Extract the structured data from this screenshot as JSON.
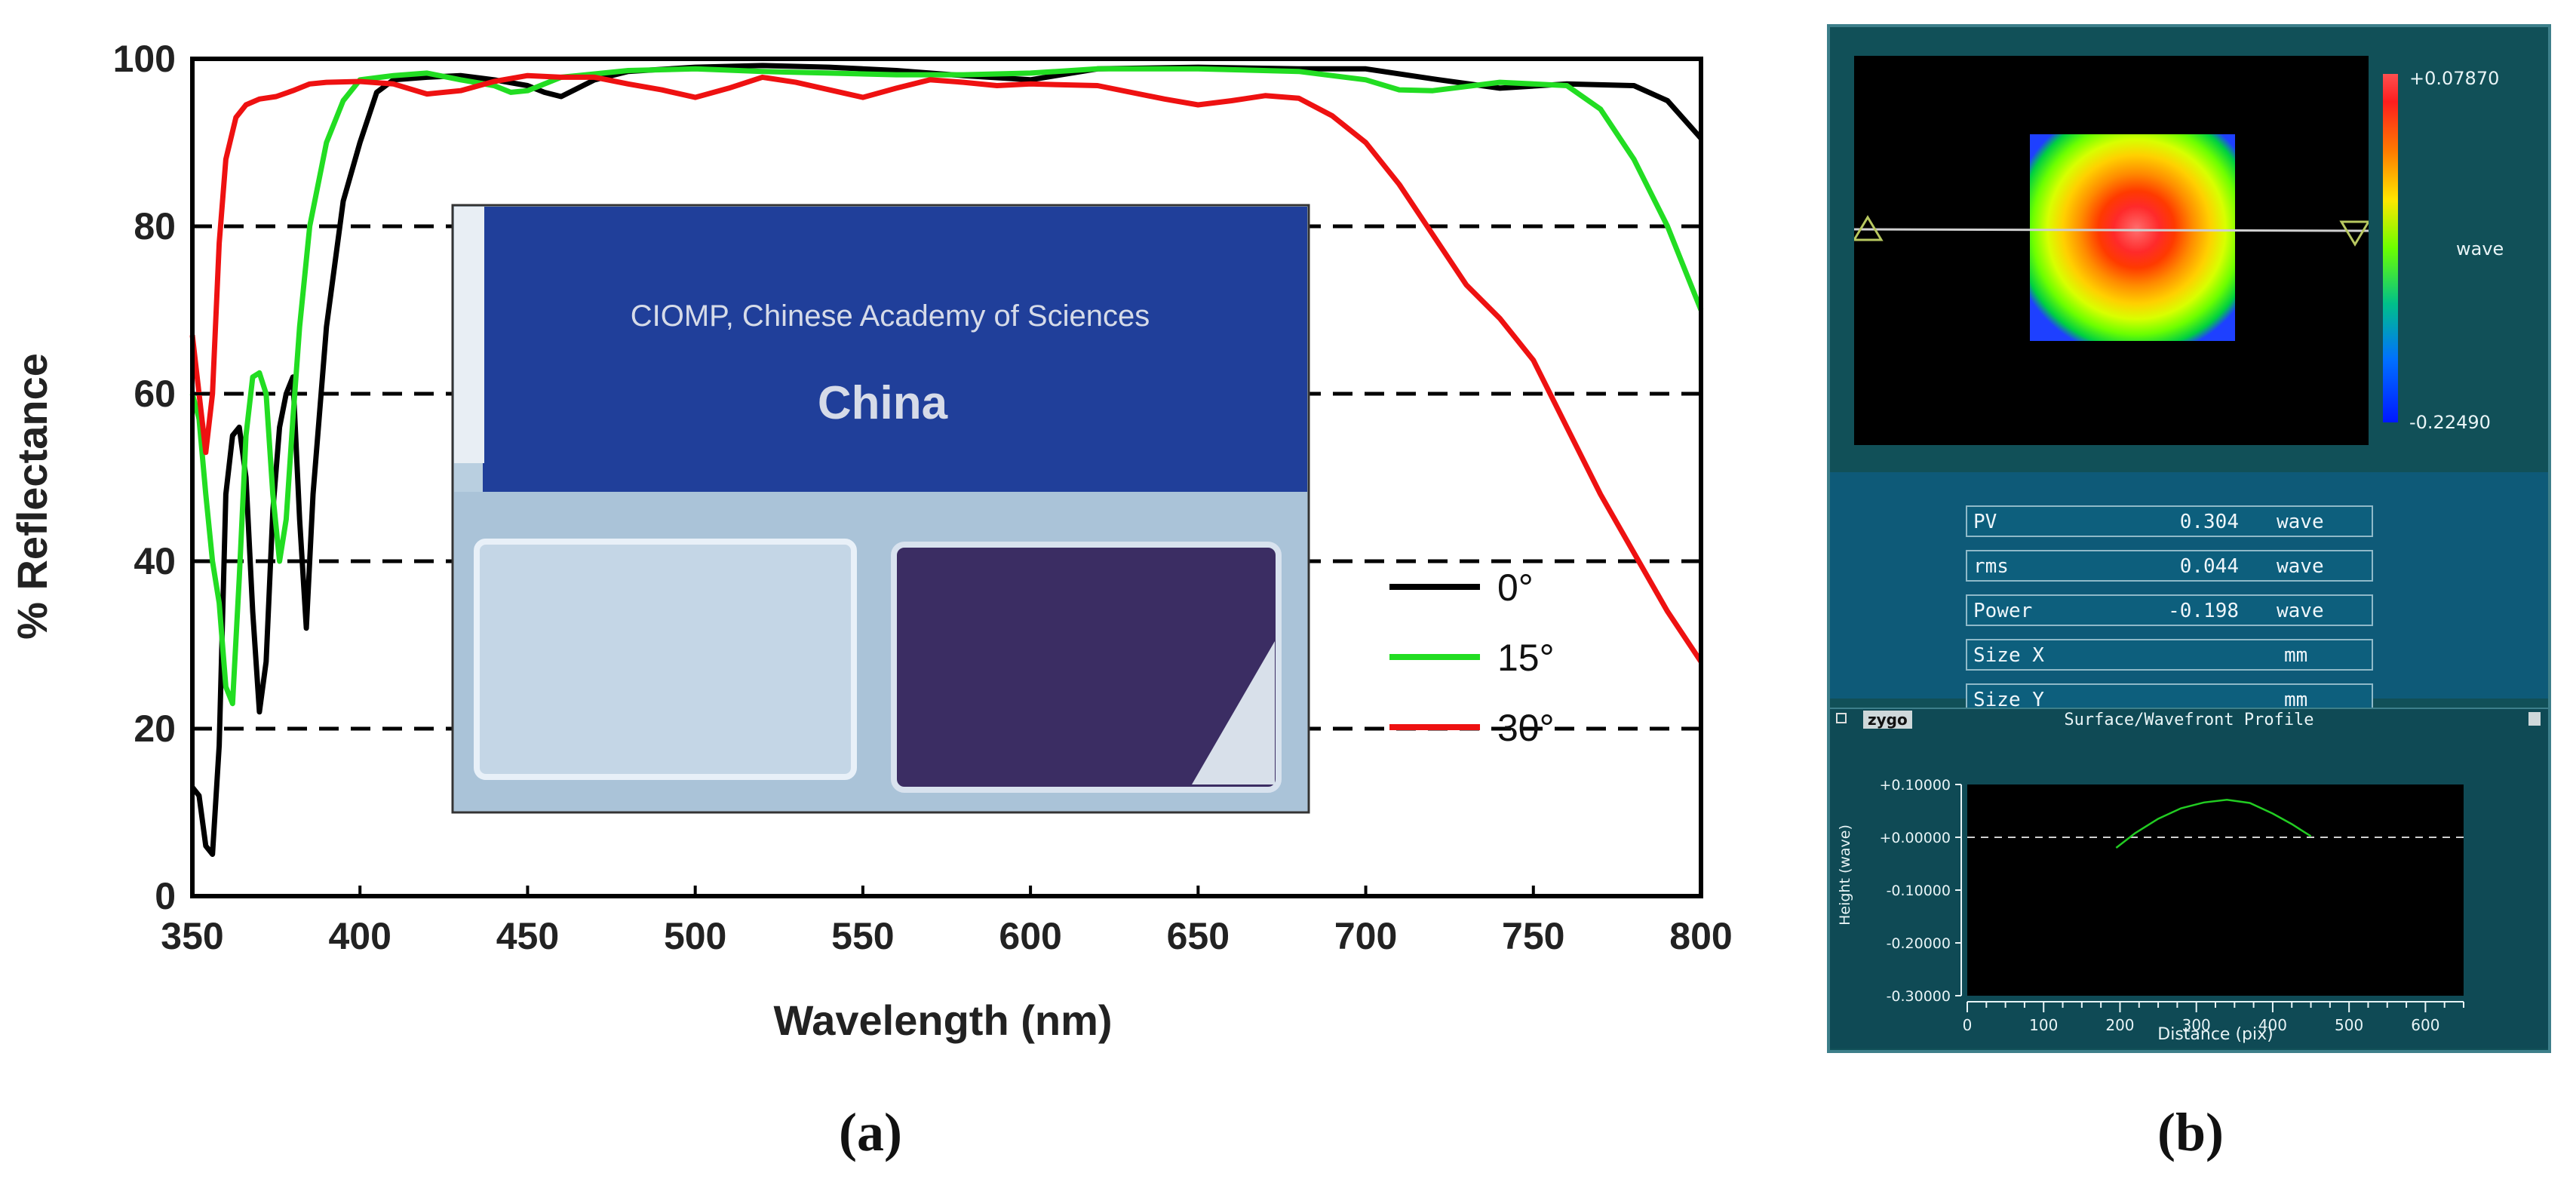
{
  "chart_data": [
    {
      "type": "line",
      "title": "",
      "xlabel": "Wavelength (nm)",
      "ylabel": "% Reflectance",
      "xlim": [
        350,
        800
      ],
      "ylim": [
        0,
        100
      ],
      "x_ticks": [
        350,
        400,
        450,
        500,
        550,
        600,
        650,
        700,
        750,
        800
      ],
      "y_ticks": [
        0,
        20,
        40,
        60,
        80,
        100
      ],
      "grid": "dashed horizontal at 20,40,60,80",
      "legend_position": "right",
      "series": [
        {
          "name": "0°",
          "color": "#000000",
          "points": [
            [
              350,
              13
            ],
            [
              352,
              12
            ],
            [
              354,
              6
            ],
            [
              356,
              5
            ],
            [
              358,
              18
            ],
            [
              360,
              48
            ],
            [
              362,
              55
            ],
            [
              364,
              56
            ],
            [
              366,
              50
            ],
            [
              368,
              34
            ],
            [
              370,
              22
            ],
            [
              372,
              28
            ],
            [
              374,
              46
            ],
            [
              376,
              56
            ],
            [
              378,
              60
            ],
            [
              380,
              62
            ],
            [
              382,
              45
            ],
            [
              384,
              32
            ],
            [
              386,
              48
            ],
            [
              390,
              68
            ],
            [
              395,
              83
            ],
            [
              400,
              90
            ],
            [
              405,
              96
            ],
            [
              410,
              97.5
            ],
            [
              420,
              97.8
            ],
            [
              430,
              98
            ],
            [
              440,
              97.5
            ],
            [
              450,
              96.8
            ],
            [
              455,
              96
            ],
            [
              460,
              95.5
            ],
            [
              470,
              97.5
            ],
            [
              480,
              98.5
            ],
            [
              500,
              99
            ],
            [
              520,
              99.2
            ],
            [
              540,
              99
            ],
            [
              560,
              98.6
            ],
            [
              580,
              98
            ],
            [
              600,
              97.5
            ],
            [
              620,
              98.8
            ],
            [
              650,
              99
            ],
            [
              680,
              98.8
            ],
            [
              700,
              98.8
            ],
            [
              720,
              97.6
            ],
            [
              740,
              96.5
            ],
            [
              760,
              97
            ],
            [
              780,
              96.8
            ],
            [
              790,
              95
            ],
            [
              800,
              90.5
            ]
          ]
        },
        {
          "name": "15°",
          "color": "#22dd22",
          "points": [
            [
              350,
              60
            ],
            [
              352,
              57
            ],
            [
              354,
              48
            ],
            [
              356,
              40
            ],
            [
              358,
              35
            ],
            [
              360,
              25
            ],
            [
              362,
              23
            ],
            [
              364,
              38
            ],
            [
              366,
              55
            ],
            [
              368,
              62
            ],
            [
              370,
              62.5
            ],
            [
              372,
              60
            ],
            [
              374,
              48
            ],
            [
              376,
              40
            ],
            [
              378,
              45
            ],
            [
              380,
              57
            ],
            [
              382,
              68
            ],
            [
              385,
              80
            ],
            [
              390,
              90
            ],
            [
              395,
              95
            ],
            [
              400,
              97.5
            ],
            [
              410,
              98
            ],
            [
              420,
              98.3
            ],
            [
              430,
              97.5
            ],
            [
              440,
              96.8
            ],
            [
              445,
              96
            ],
            [
              450,
              96.2
            ],
            [
              460,
              97.8
            ],
            [
              480,
              98.6
            ],
            [
              500,
              98.8
            ],
            [
              520,
              98.5
            ],
            [
              540,
              98.3
            ],
            [
              560,
              98.1
            ],
            [
              580,
              98.1
            ],
            [
              600,
              98.3
            ],
            [
              620,
              98.8
            ],
            [
              650,
              98.8
            ],
            [
              680,
              98.5
            ],
            [
              700,
              97.5
            ],
            [
              710,
              96.3
            ],
            [
              720,
              96.2
            ],
            [
              740,
              97.2
            ],
            [
              760,
              96.8
            ],
            [
              770,
              94
            ],
            [
              780,
              88
            ],
            [
              790,
              80
            ],
            [
              800,
              70
            ]
          ]
        },
        {
          "name": "30°",
          "color": "#ee1111",
          "points": [
            [
              350,
              67
            ],
            [
              352,
              60
            ],
            [
              354,
              53
            ],
            [
              356,
              60
            ],
            [
              358,
              78
            ],
            [
              360,
              88
            ],
            [
              363,
              93
            ],
            [
              366,
              94.5
            ],
            [
              370,
              95.2
            ],
            [
              375,
              95.5
            ],
            [
              380,
              96.2
            ],
            [
              385,
              97
            ],
            [
              390,
              97.2
            ],
            [
              400,
              97.3
            ],
            [
              410,
              97
            ],
            [
              420,
              95.8
            ],
            [
              430,
              96.2
            ],
            [
              440,
              97.3
            ],
            [
              450,
              98
            ],
            [
              460,
              97.8
            ],
            [
              470,
              97.8
            ],
            [
              480,
              97
            ],
            [
              490,
              96.3
            ],
            [
              500,
              95.4
            ],
            [
              510,
              96.5
            ],
            [
              520,
              97.8
            ],
            [
              530,
              97.2
            ],
            [
              540,
              96.3
            ],
            [
              550,
              95.4
            ],
            [
              560,
              96.5
            ],
            [
              570,
              97.5
            ],
            [
              580,
              97.2
            ],
            [
              590,
              96.8
            ],
            [
              600,
              97
            ],
            [
              620,
              96.8
            ],
            [
              640,
              95.2
            ],
            [
              650,
              94.5
            ],
            [
              660,
              95
            ],
            [
              670,
              95.6
            ],
            [
              680,
              95.3
            ],
            [
              690,
              93.2
            ],
            [
              700,
              90
            ],
            [
              710,
              85
            ],
            [
              720,
              79
            ],
            [
              730,
              73
            ],
            [
              740,
              69
            ],
            [
              750,
              64
            ],
            [
              760,
              56
            ],
            [
              770,
              48
            ],
            [
              780,
              41
            ],
            [
              790,
              34
            ],
            [
              800,
              28
            ]
          ]
        }
      ]
    },
    {
      "type": "line",
      "title": "Surface/Wavefront Profile",
      "xlabel": "Distance (pix)",
      "ylabel": "Height (wave)",
      "xlim": [
        0,
        650
      ],
      "ylim": [
        -0.3,
        0.1
      ],
      "x_ticks": [
        0,
        100,
        200,
        300,
        400,
        500,
        600
      ],
      "y_ticks": [
        0.1,
        0.0,
        -0.1,
        -0.2,
        -0.3
      ],
      "y_tick_labels": [
        "+0.10000",
        "+0.00000",
        "-0.10000",
        "-0.20000",
        "-0.30000"
      ],
      "zero_line": "dashed",
      "series": [
        {
          "color": "#22cc22",
          "points": [
            [
              195,
              -0.02
            ],
            [
              220,
              0.008
            ],
            [
              250,
              0.035
            ],
            [
              280,
              0.055
            ],
            [
              310,
              0.066
            ],
            [
              340,
              0.071
            ],
            [
              370,
              0.065
            ],
            [
              400,
              0.045
            ],
            [
              425,
              0.025
            ],
            [
              450,
              0.002
            ]
          ]
        }
      ]
    }
  ],
  "inset_photo": {
    "sign_line1": "CIOMP, Chinese Academy of Sciences",
    "sign_line2": "China"
  },
  "zygo_panel": {
    "colorbar_max": "+0.07870",
    "colorbar_unit": "wave",
    "colorbar_min": "-0.22490",
    "stats": [
      {
        "label": "PV",
        "value": "0.304",
        "unit": "wave"
      },
      {
        "label": "rms",
        "value": "0.044",
        "unit": "wave"
      },
      {
        "label": "Power",
        "value": "-0.198",
        "unit": "wave"
      },
      {
        "label": "Size X",
        "value": "",
        "unit": "mm"
      },
      {
        "label": "Size Y",
        "value": "",
        "unit": "mm"
      }
    ],
    "brand": "zygo",
    "profile_title": "Surface/Wavefront Profile"
  },
  "captions": {
    "a": "(a)",
    "b": "(b)"
  }
}
